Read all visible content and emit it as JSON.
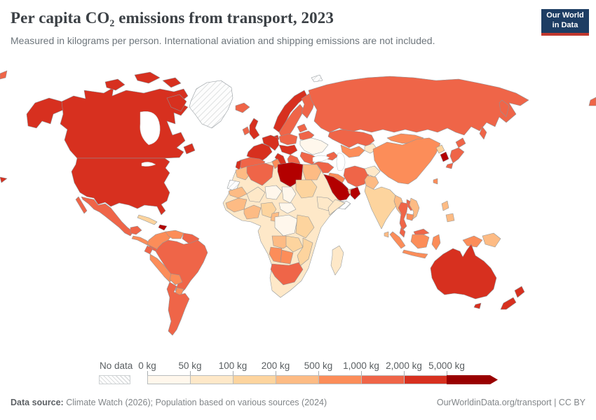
{
  "header": {
    "title": "Per capita CO₂ emissions from transport, 2023",
    "subtitle": "Measured in kilograms per person. International aviation and shipping emissions are not included.",
    "logo": {
      "line1": "Our World",
      "line2": "in Data",
      "bg": "#1d3d63",
      "accent": "#c0372e"
    }
  },
  "legend": {
    "no_data_label": "No data",
    "bins": [
      {
        "label": "0 kg",
        "color": "#fff7ec"
      },
      {
        "label": "50 kg",
        "color": "#fee8c8"
      },
      {
        "label": "100 kg",
        "color": "#fdd49e"
      },
      {
        "label": "200 kg",
        "color": "#fdbb84"
      },
      {
        "label": "500 kg",
        "color": "#fc8d59"
      },
      {
        "label": "1,000 kg",
        "color": "#ef6548"
      },
      {
        "label": "2,000 kg",
        "color": "#d7301f"
      },
      {
        "label": "5,000 kg",
        "color": "#990000"
      }
    ]
  },
  "footer": {
    "source_label": "Data source:",
    "source_text": " Climate Watch (2026); Population based on various sources (2024)",
    "credit": "OurWorldinData.org/transport | CC BY"
  },
  "chart_data": {
    "type": "choropleth",
    "title": "Per capita CO₂ emissions from transport, 2023",
    "unit": "kilograms per person",
    "note": "International aviation and shipping emissions are not included.",
    "bin_edges_kg": [
      0,
      50,
      100,
      200,
      500,
      1000,
      2000,
      5000
    ],
    "legend_colors": [
      "#fff7ec",
      "#fee8c8",
      "#fdd49e",
      "#fdbb84",
      "#fc8d59",
      "#ef6548",
      "#d7301f",
      "#990000"
    ],
    "regions": [
      {
        "name": "United States",
        "range": "2,000–5,000 kg"
      },
      {
        "name": "Canada",
        "range": "2,000–5,000 kg"
      },
      {
        "name": "Australia",
        "range": "2,000–5,000 kg"
      },
      {
        "name": "New Zealand",
        "range": "2,000–5,000 kg"
      },
      {
        "name": "Norway",
        "range": "2,000–5,000 kg"
      },
      {
        "name": "France",
        "range": "2,000–5,000 kg"
      },
      {
        "name": "Germany",
        "range": "2,000–5,000 kg"
      },
      {
        "name": "Spain",
        "range": "1,000–2,000 kg"
      },
      {
        "name": "United Kingdom",
        "range": "2,000–5,000 kg"
      },
      {
        "name": "Saudi Arabia",
        "range": "5,000 kg+"
      },
      {
        "name": "Oman",
        "range": "5,000 kg+"
      },
      {
        "name": "Libya",
        "range": "5,000 kg+"
      },
      {
        "name": "South Korea",
        "range": "5,000 kg+"
      },
      {
        "name": "Russia",
        "range": "1,000–2,000 kg"
      },
      {
        "name": "Kazakhstan",
        "range": "1,000–2,000 kg"
      },
      {
        "name": "Turkey",
        "range": "1,000–2,000 kg"
      },
      {
        "name": "Iran",
        "range": "1,000–2,000 kg"
      },
      {
        "name": "Japan",
        "range": "1,000–2,000 kg"
      },
      {
        "name": "China",
        "range": "500–1,000 kg"
      },
      {
        "name": "Mongolia",
        "range": "500–1,000 kg"
      },
      {
        "name": "India",
        "range": "100–200 kg"
      },
      {
        "name": "Pakistan",
        "range": "200–500 kg"
      },
      {
        "name": "Afghanistan",
        "range": "50–100 kg"
      },
      {
        "name": "Ukraine",
        "range": "0–50 kg"
      },
      {
        "name": "Mexico",
        "range": "1,000–2,000 kg"
      },
      {
        "name": "Brazil",
        "range": "1,000–2,000 kg"
      },
      {
        "name": "Argentina",
        "range": "1,000–2,000 kg"
      },
      {
        "name": "Chile",
        "range": "1,000–2,000 kg"
      },
      {
        "name": "Colombia",
        "range": "500–1,000 kg"
      },
      {
        "name": "Peru",
        "range": "500–1,000 kg"
      },
      {
        "name": "Venezuela",
        "range": "500–1,000 kg"
      },
      {
        "name": "Algeria",
        "range": "1,000–2,000 kg"
      },
      {
        "name": "Morocco",
        "range": "200–500 kg"
      },
      {
        "name": "Egypt",
        "range": "200–500 kg"
      },
      {
        "name": "Nigeria",
        "range": "100–200 kg"
      },
      {
        "name": "Niger",
        "range": "0–50 kg"
      },
      {
        "name": "Chad",
        "range": "0–50 kg"
      },
      {
        "name": "DR Congo",
        "range": "0–50 kg"
      },
      {
        "name": "Ethiopia",
        "range": "50–100 kg"
      },
      {
        "name": "South Africa",
        "range": "1,000–2,000 kg"
      },
      {
        "name": "Namibia",
        "range": "500–1,000 kg"
      },
      {
        "name": "Botswana",
        "range": "500–1,000 kg"
      },
      {
        "name": "Madagascar",
        "range": "50–100 kg"
      },
      {
        "name": "Thailand",
        "range": "1,000–2,000 kg"
      },
      {
        "name": "Malaysia",
        "range": "1,000–2,000 kg"
      },
      {
        "name": "Indonesia",
        "range": "500–1,000 kg"
      },
      {
        "name": "Philippines",
        "range": "200–500 kg"
      },
      {
        "name": "Greenland",
        "range": "No data"
      },
      {
        "name": "Western Sahara",
        "range": "No data"
      },
      {
        "name": "Yemen",
        "range": "No data"
      }
    ]
  },
  "map": {
    "stroke": "#8d9499",
    "region_colors": {
      "canada": "#d7301f",
      "usa": "#d7301f",
      "alaska": "#d7301f",
      "arctic-island": "#d7301f",
      "greenland": "nodata",
      "svalbard": "nodata",
      "mexico": "#ef6548",
      "baja": "#ef6548",
      "central-america": "#fc8d59",
      "panama": "#ef6548",
      "cuba": "#fdd49e",
      "hispaniola": "#b30000",
      "colombia": "#fc8d59",
      "venezuela": "#fc8d59",
      "guyanas": "#ef6548",
      "ecuador": "#ef6548",
      "peru": "#fc8d59",
      "brazil": "#ef6548",
      "bolivia": "#fc8d59",
      "paraguay": "#fc8d59",
      "argentina-chile": "#ef6548",
      "iceland": "#ef6548",
      "uk": "#d7301f",
      "ireland": "#ef6548",
      "norway": "#d7301f",
      "sweden": "#ef6548",
      "finland": "#ef6548",
      "denmark": "#d7301f",
      "france": "#d7301f",
      "germany": "#d7301f",
      "iberia": "#ef6548",
      "portugal": "#d7301f",
      "italy": "#d7301f",
      "central-europe": "#d7301f",
      "poland": "#ef6548",
      "baltics": "#ef6548",
      "belarus": "#ef6548",
      "ukraine": "#fff7ec",
      "romania": "#ef6548",
      "balkans": "#ef6548",
      "greece": "#ef6548",
      "russia": "#ef6548",
      "kamchatka": "#ef6548",
      "sakhalin": "#ef6548",
      "edge-fragment": "#ef6548",
      "kazakhstan": "#ef6548",
      "central-asia": "#fc8d59",
      "kyrgyzstan": "#fee8c8",
      "caucasus": "#ef6548",
      "turkey": "#ef6548",
      "iraq-syria": "#fc8d59",
      "iran": "#ef6548",
      "afghanistan": "#fee8c8",
      "pakistan": "#fdbb84",
      "india": "#fdd49e",
      "bangladesh": "#fdbb84",
      "sri-lanka": "#fdbb84",
      "saudi-arabia": "#b30000",
      "oman": "#b30000",
      "yemen": "nodata",
      "gulf-states": "#fdbb84",
      "china": "#fc8d59",
      "mongolia": "#fc8d59",
      "north-korea": "#fdd49e",
      "south-korea": "#b30000",
      "japan": "#ef6548",
      "taiwan": "#fc8d59",
      "myanmar": "#fdbb84",
      "thailand": "#ef6548",
      "laos": "#ef6548",
      "vietnam": "#fdbb84",
      "cambodia": "#fc8d59",
      "malaysia": "#ef6548",
      "borneo-malaysia": "#ef6548",
      "indonesia": "#fc8d59",
      "philippines": "#fdbb84",
      "papua-new-guinea": "#fdbb84",
      "africa-base": "#fee8c8",
      "morocco": "#fdbb84",
      "western-sahara": "nodata",
      "algeria": "#ef6548",
      "tunisia": "#fc8d59",
      "libya": "#b30000",
      "egypt": "#fdbb84",
      "mauritania": "#fdbb84",
      "mali": "#fee8c8",
      "niger": "#fff7ec",
      "chad": "#fff7ec",
      "sudan": "#fdd49e",
      "west-africa": "#fdbb84",
      "nigeria": "#fdd49e",
      "cameroon": "#fdbb84",
      "car": "#fff7ec",
      "drc": "#fff7ec",
      "ethiopia": "#fee8c8",
      "somalia": "#fee8c8",
      "kenya-tanzania": "#fdd49e",
      "angola": "#fdbb84",
      "zambia": "#fdd49e",
      "mozambique": "#fdd49e",
      "namibia": "#fc8d59",
      "botswana": "#fc8d59",
      "south-africa": "#ef6548",
      "madagascar": "#fee8c8",
      "australia": "#d7301f",
      "tasmania": "#d7301f",
      "new-zealand": "#d7301f"
    }
  }
}
